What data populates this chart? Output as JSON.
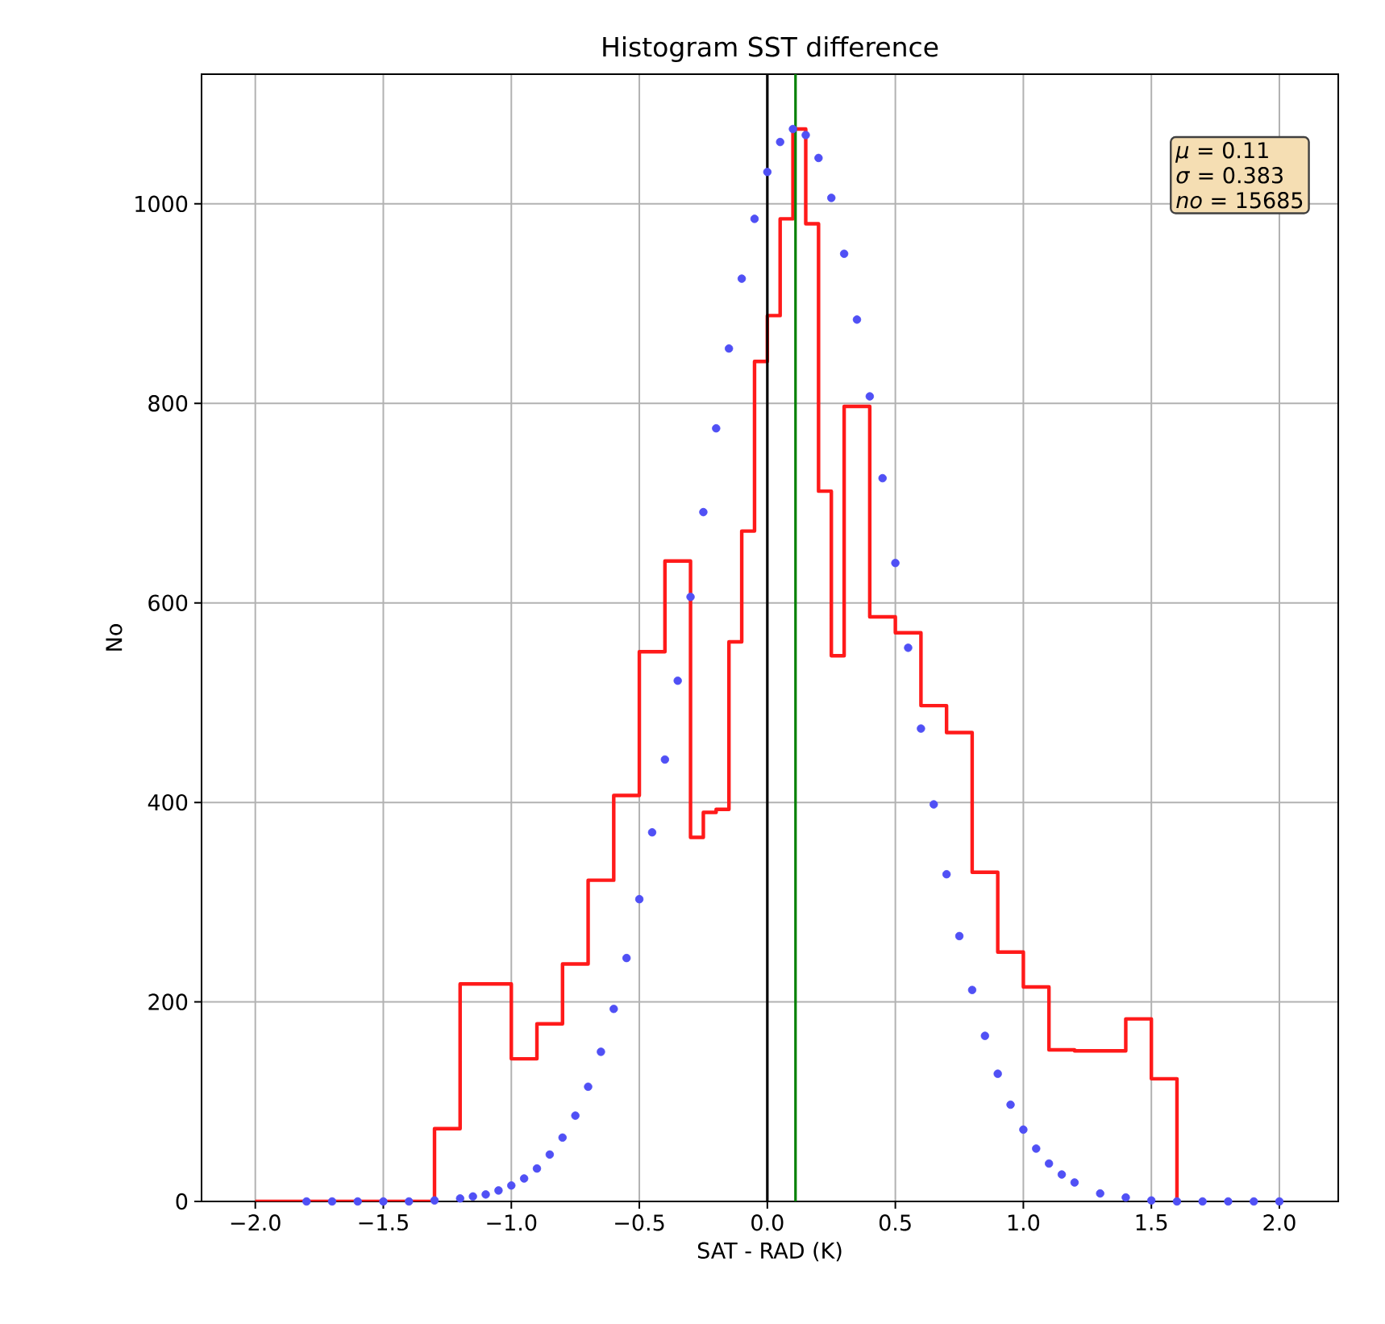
{
  "chart_data": {
    "type": "histogram",
    "title": "Histogram SST difference",
    "xlabel": "SAT - RAD (K)",
    "ylabel": "No",
    "series": [
      {
        "color": "#ff1a1a",
        "line_style": "solid",
        "bins": [
          -2.0,
          -1.9,
          -1.8,
          -1.7,
          -1.6,
          -1.5,
          -1.4,
          -1.3,
          -1.2,
          -1.1,
          -1.0,
          -0.9,
          -0.8,
          -0.7,
          -0.6,
          -0.5,
          -0.4,
          -0.3,
          -0.25,
          -0.2,
          -0.15,
          -0.1,
          -0.05,
          0.0,
          0.05,
          0.1,
          0.15,
          0.2,
          0.25,
          0.3,
          0.4,
          0.5,
          0.6,
          0.7,
          0.8,
          0.9,
          1.0,
          1.1,
          1.2,
          1.3,
          1.4,
          1.5,
          1.6
        ],
        "values": [
          0,
          0,
          0,
          0,
          0,
          0,
          0,
          73,
          218,
          218,
          143,
          178,
          238,
          322,
          407,
          551,
          642,
          365,
          390,
          393,
          561,
          672,
          842,
          888,
          985,
          1075,
          980,
          712,
          547,
          797,
          586,
          570,
          497,
          470,
          330,
          250,
          215,
          152,
          151,
          151,
          183,
          123
        ]
      },
      {
        "type": "scatter",
        "color": "#5050f5",
        "marker": "circle",
        "x": [
          -1.8,
          -1.7,
          -1.6,
          -1.5,
          -1.4,
          -1.3,
          -1.2,
          -1.15,
          -1.1,
          -1.05,
          -1.0,
          -0.95,
          -0.9,
          -0.85,
          -0.8,
          -0.75,
          -0.7,
          -0.65,
          -0.6,
          -0.55,
          -0.5,
          -0.45,
          -0.4,
          -0.35,
          -0.3,
          -0.25,
          -0.2,
          -0.15,
          -0.1,
          -0.05,
          0.0,
          0.05,
          0.1,
          0.15,
          0.2,
          0.25,
          0.3,
          0.35,
          0.4,
          0.45,
          0.5,
          0.55,
          0.6,
          0.65,
          0.7,
          0.75,
          0.8,
          0.85,
          0.9,
          0.95,
          1.0,
          1.05,
          1.1,
          1.15,
          1.2,
          1.3,
          1.4,
          1.5,
          1.6,
          1.7,
          1.8,
          1.9,
          2.0
        ],
        "values": [
          0,
          0,
          0,
          0,
          0,
          1,
          3,
          5,
          7,
          11,
          16,
          23,
          33,
          47,
          64,
          86,
          115,
          150,
          193,
          244,
          303,
          370,
          443,
          522,
          606,
          691,
          775,
          855,
          925,
          985,
          1032,
          1062,
          1075,
          1069,
          1046,
          1006,
          950,
          884,
          807,
          725,
          640,
          555,
          474,
          398,
          328,
          266,
          212,
          166,
          128,
          97,
          72,
          53,
          38,
          27,
          19,
          8,
          4,
          1,
          0,
          0,
          0,
          0,
          0
        ]
      }
    ],
    "xlim": [
      -2.21,
      2.23
    ],
    "ylim": [
      0,
      1130
    ],
    "xticks": [
      {
        "value": -2.0,
        "label": "−2.0"
      },
      {
        "value": -1.5,
        "label": "−1.5"
      },
      {
        "value": -1.0,
        "label": "−1.0"
      },
      {
        "value": -0.5,
        "label": "−0.5"
      },
      {
        "value": 0.0,
        "label": "0.0"
      },
      {
        "value": 0.5,
        "label": "0.5"
      },
      {
        "value": 1.0,
        "label": "1.0"
      },
      {
        "value": 1.5,
        "label": "1.5"
      },
      {
        "value": 2.0,
        "label": "2.0"
      }
    ],
    "yticks": [
      0,
      200,
      400,
      600,
      800,
      1000
    ],
    "grid": true,
    "ref_lines": [
      {
        "axis": "x",
        "value": 0,
        "color": "#000000"
      },
      {
        "axis": "x",
        "value": 0.11,
        "color": "#008000"
      }
    ],
    "annotations": [
      "*μ*  = 0.11",
      "*σ*  = 0.383",
      "*no* = 15685"
    ]
  }
}
